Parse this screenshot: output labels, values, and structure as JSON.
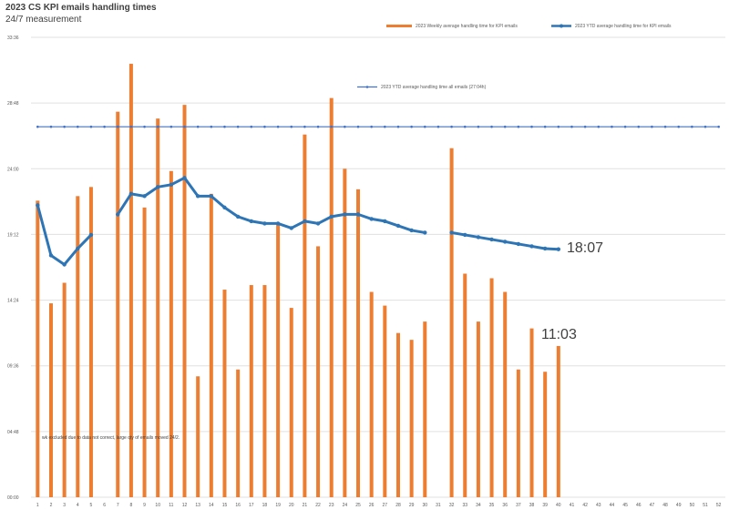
{
  "chart_data": {
    "type": "bar+line",
    "title": "2023 CS KPI emails handling times",
    "subtitle": "24/7 measurement",
    "y_tick_labels": [
      "00:00",
      "04:48",
      "09:36",
      "14:24",
      "19:12",
      "24:00",
      "28:48",
      "33:36"
    ],
    "y_ticks_minutes": [
      0,
      288,
      576,
      864,
      1152,
      1440,
      1728,
      2016
    ],
    "ylim_minutes": [
      0,
      2016
    ],
    "categories": [
      "1",
      "2",
      "3",
      "4",
      "5",
      "6",
      "7",
      "8",
      "9",
      "10",
      "11",
      "12",
      "13",
      "14",
      "15",
      "16",
      "17",
      "18",
      "19",
      "20",
      "21",
      "22",
      "23",
      "24",
      "25",
      "26",
      "27",
      "28",
      "29",
      "30",
      "31",
      "32",
      "33",
      "34",
      "35",
      "36",
      "37",
      "38",
      "39",
      "40",
      "41",
      "42",
      "43",
      "44",
      "45",
      "46",
      "47",
      "48",
      "49",
      "50",
      "51",
      "52"
    ],
    "series": [
      {
        "name": "2023 Weekly average handling time for KPI emails",
        "kind": "bar",
        "color": "#ED7D31",
        "values_minutes": [
          1300,
          850,
          940,
          1320,
          1360,
          null,
          1690,
          1900,
          1270,
          1660,
          1430,
          1720,
          530,
          1330,
          910,
          560,
          930,
          930,
          1200,
          830,
          1590,
          1100,
          1750,
          1440,
          1350,
          900,
          840,
          720,
          690,
          770,
          null,
          1530,
          980,
          770,
          960,
          900,
          560,
          740,
          550,
          663,
          null,
          null,
          null,
          null,
          null,
          null,
          null,
          null,
          null,
          null,
          null,
          null
        ]
      },
      {
        "name": "2023 YTD average handling time for KPI emails",
        "kind": "line",
        "color": "#2E75B6",
        "values_minutes": [
          1280,
          1060,
          1020,
          1090,
          1150,
          null,
          1240,
          1330,
          1320,
          1360,
          1370,
          1400,
          1320,
          1320,
          1270,
          1230,
          1210,
          1200,
          1200,
          1180,
          1210,
          1200,
          1230,
          1240,
          1240,
          1220,
          1210,
          1190,
          1170,
          1160,
          null,
          1160,
          1150,
          1140,
          1130,
          1120,
          1110,
          1100,
          1090,
          1087,
          null,
          null,
          null,
          null,
          null,
          null,
          null,
          null,
          null,
          null,
          null,
          null
        ]
      },
      {
        "name": "2023 YTD average handling time all emails (27:04h)",
        "kind": "line",
        "color": "#4472C4",
        "values_minutes": [
          1624,
          1624,
          1624,
          1624,
          1624,
          1624,
          1624,
          1624,
          1624,
          1624,
          1624,
          1624,
          1624,
          1624,
          1624,
          1624,
          1624,
          1624,
          1624,
          1624,
          1624,
          1624,
          1624,
          1624,
          1624,
          1624,
          1624,
          1624,
          1624,
          1624,
          1624,
          1624,
          1624,
          1624,
          1624,
          1624,
          1624,
          1624,
          1624,
          1624,
          1624,
          1624,
          1624,
          1624,
          1624,
          1624,
          1624,
          1624,
          1624,
          1624,
          1624,
          1624
        ]
      }
    ],
    "annotations": [
      {
        "text": "18:07"
      },
      {
        "text": "11:03"
      },
      {
        "text": "wk excluded due to data not correct, large qty of emails moved 24/2."
      }
    ],
    "grid": true,
    "legend_position": "top"
  }
}
